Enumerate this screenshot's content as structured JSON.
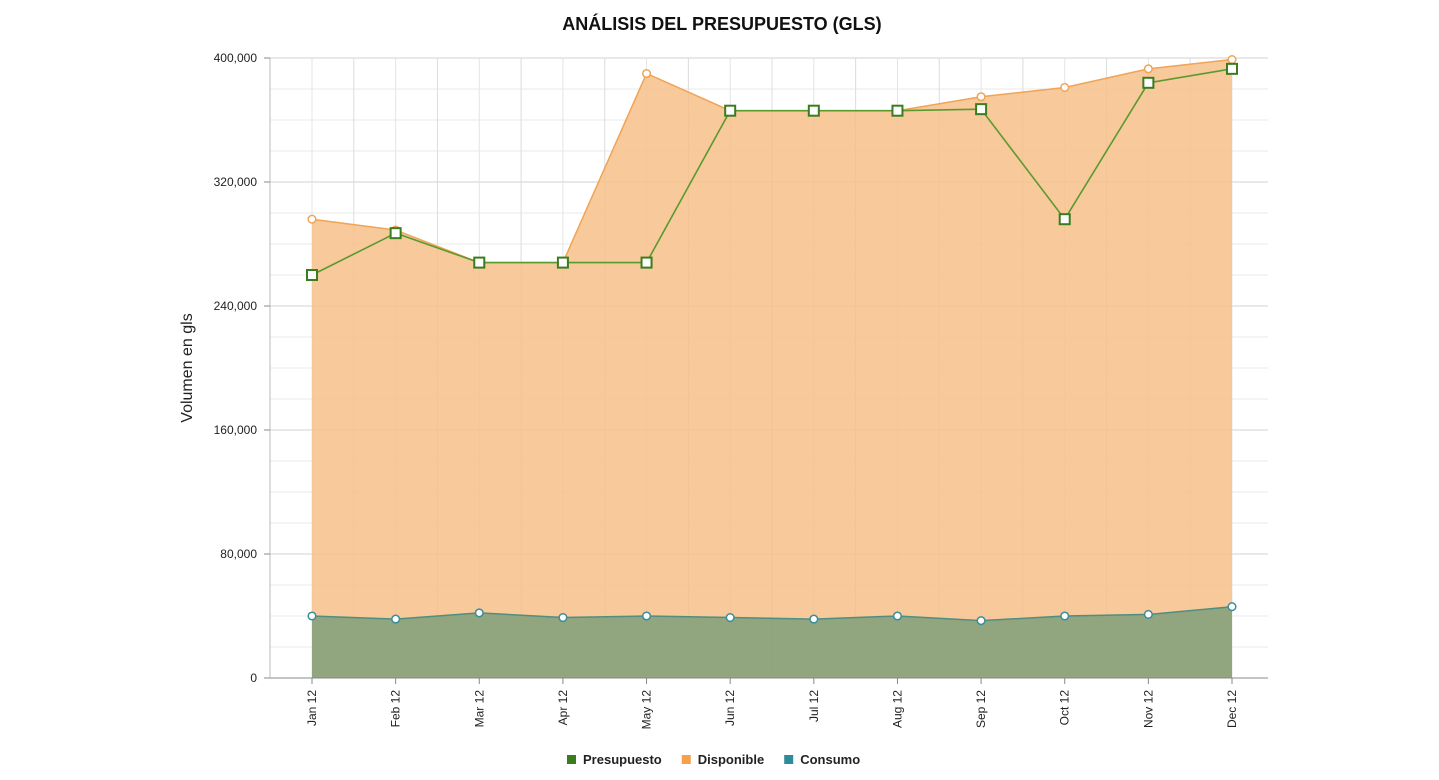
{
  "chart_data": {
    "type": "area",
    "title": "ANÁLISIS DEL PRESUPUESTO (GLS)",
    "xlabel": "",
    "ylabel": "Volumen en gls",
    "categories": [
      "Jan 12",
      "Feb 12",
      "Mar 12",
      "Apr 12",
      "May 12",
      "Jun 12",
      "Jul 12",
      "Aug 12",
      "Sep 12",
      "Oct 12",
      "Nov 12",
      "Dec 12"
    ],
    "ylim": [
      0,
      400000
    ],
    "yticks": [
      0,
      80000,
      160000,
      240000,
      320000,
      400000
    ],
    "ytick_labels": [
      "0",
      "80,000",
      "160,000",
      "240,000",
      "320,000",
      "400,000"
    ],
    "grid": true,
    "legend_position": "bottom",
    "series": [
      {
        "name": "Presupuesto",
        "kind": "line",
        "color": "#3a7d1e",
        "values": [
          260000,
          287000,
          268000,
          268000,
          268000,
          366000,
          366000,
          366000,
          367000,
          296000,
          384000,
          393000
        ]
      },
      {
        "name": "Disponible",
        "kind": "area",
        "color": "#f5a04a",
        "values": [
          296000,
          289000,
          268000,
          268000,
          390000,
          366000,
          366000,
          366000,
          375000,
          381000,
          393000,
          399000
        ]
      },
      {
        "name": "Consumo",
        "kind": "area",
        "color": "#2e8b9a",
        "values": [
          40000,
          38000,
          42000,
          39000,
          40000,
          39000,
          38000,
          40000,
          37000,
          40000,
          41000,
          46000
        ]
      }
    ]
  }
}
